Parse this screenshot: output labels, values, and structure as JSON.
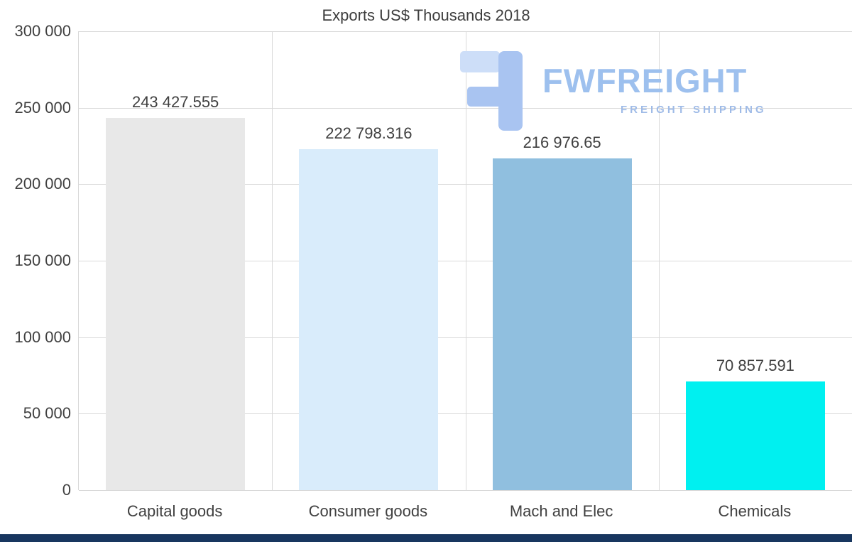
{
  "chart_data": {
    "type": "bar",
    "title": "Exports US$ Thousands 2018",
    "categories": [
      "Capital goods",
      "Consumer goods",
      "Mach and Elec",
      "Chemicals"
    ],
    "values": [
      243427.555,
      222798.316,
      216976.65,
      70857.591
    ],
    "value_labels": [
      "243 427.555",
      "222 798.316",
      "216 976.65",
      "70 857.591"
    ],
    "bar_colors": [
      "#e8e8e8",
      "#d9ecfb",
      "#90bfdf",
      "#00f0f0"
    ],
    "ylim": [
      0,
      300000
    ],
    "yticks": [
      300000,
      250000,
      200000,
      150000,
      100000,
      50000,
      0
    ],
    "ytick_labels": [
      "300 000",
      "250 000",
      "200 000",
      "150 000",
      "100 000",
      "50 000",
      "0"
    ],
    "grid": true,
    "legend": false,
    "xlabel": "",
    "ylabel": ""
  },
  "watermark": {
    "brand": "FWFREIGHT",
    "tagline": "FREIGHT SHIPPING",
    "icon": "fwfreight-logo-icon",
    "brand_color": "#9dc0ee",
    "tagline_color": "#9fbbe7",
    "icon_main_color": "#a9c4f1",
    "icon_light_color": "#cddef8"
  },
  "footer": {
    "bar_color": "#18365f"
  }
}
